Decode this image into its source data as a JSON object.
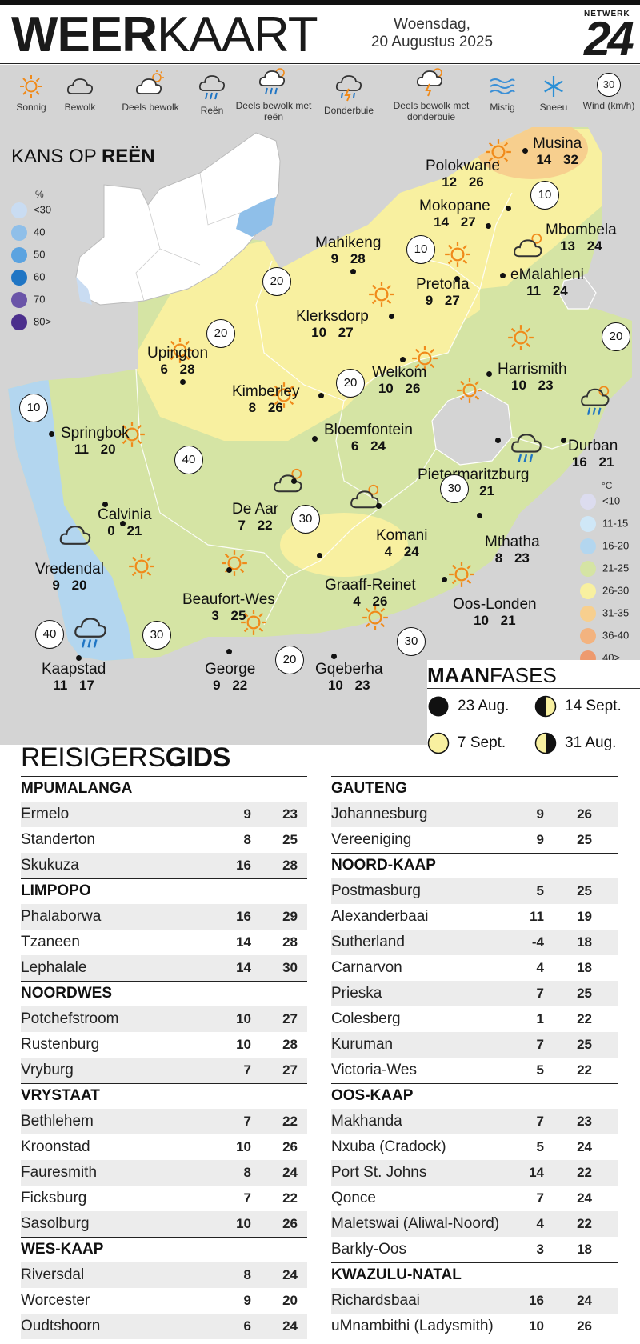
{
  "header": {
    "title_bold": "WEER",
    "title_light": "KAART",
    "date_line1": "Woensdag,",
    "date_line2": "20 Augustus 2025",
    "logo_top": "NETWERK",
    "logo_num": "24"
  },
  "legend": [
    {
      "icon": "sun-icon",
      "label": "Sonnig"
    },
    {
      "icon": "cloud-icon",
      "label": "Bewolk"
    },
    {
      "icon": "partly-cloudy-icon",
      "label": "Deels bewolk"
    },
    {
      "icon": "rain-icon",
      "label": "Reën"
    },
    {
      "icon": "partly-cloudy-rain-icon",
      "label": "Deels bewolk met reën"
    },
    {
      "icon": "thunderstorm-icon",
      "label": "Donderbuie"
    },
    {
      "icon": "partly-cloudy-thunder-icon",
      "label": "Deels bewolk met donderbuie"
    },
    {
      "icon": "fog-icon",
      "label": "Mistig"
    },
    {
      "icon": "snow-icon",
      "label": "Sneeu"
    },
    {
      "icon": "wind-icon",
      "label": "Wind (km/h)",
      "value": "30"
    }
  ],
  "rain_chance": {
    "title_light": "KANS OP ",
    "title_bold": "REËN",
    "unit": "%",
    "keys": [
      {
        "label": "<30",
        "color": "#c9dcf2"
      },
      {
        "label": "40",
        "color": "#8fbfe9"
      },
      {
        "label": "50",
        "color": "#5ba3e0"
      },
      {
        "label": "60",
        "color": "#1f75c4"
      },
      {
        "label": "70",
        "color": "#6a54a8"
      },
      {
        "label": "80>",
        "color": "#4b2e8c"
      }
    ]
  },
  "temperature_scale": {
    "unit": "°C",
    "keys": [
      {
        "label": "<10",
        "color": "#dcdcef"
      },
      {
        "label": "11-15",
        "color": "#cfe7f7"
      },
      {
        "label": "16-20",
        "color": "#b3d6ef"
      },
      {
        "label": "21-25",
        "color": "#d5e4a4"
      },
      {
        "label": "26-30",
        "color": "#f8f0a0"
      },
      {
        "label": "31-35",
        "color": "#f7cf8e"
      },
      {
        "label": "36-40",
        "color": "#f3b37f"
      },
      {
        "label": "40>",
        "color": "#ee9a6e"
      }
    ]
  },
  "cities": [
    {
      "name": "Musina",
      "min": "14",
      "max": "32"
    },
    {
      "name": "Polokwane",
      "min": "12",
      "max": "26"
    },
    {
      "name": "Mokopane",
      "min": "14",
      "max": "27"
    },
    {
      "name": "Mbombela",
      "min": "13",
      "max": "24"
    },
    {
      "name": "Mahikeng",
      "min": "9",
      "max": "28"
    },
    {
      "name": "Pretoria",
      "min": "9",
      "max": "27"
    },
    {
      "name": "eMalahleni",
      "min": "11",
      "max": "24"
    },
    {
      "name": "Klerksdorp",
      "min": "10",
      "max": "27"
    },
    {
      "name": "Upington",
      "min": "6",
      "max": "28"
    },
    {
      "name": "Welkom",
      "min": "10",
      "max": "26"
    },
    {
      "name": "Harrismith",
      "min": "10",
      "max": "23"
    },
    {
      "name": "Kimberley",
      "min": "8",
      "max": "26"
    },
    {
      "name": "Durban",
      "min": "16",
      "max": "21"
    },
    {
      "name": "Springbok",
      "min": "11",
      "max": "20"
    },
    {
      "name": "Bloemfontein",
      "min": "6",
      "max": "24"
    },
    {
      "name": "Pietermaritzburg",
      "min": "10",
      "max": "21"
    },
    {
      "name": "Calvinia",
      "min": "0",
      "max": "21"
    },
    {
      "name": "De Aar",
      "min": "7",
      "max": "22"
    },
    {
      "name": "Komani",
      "min": "4",
      "max": "24"
    },
    {
      "name": "Mthatha",
      "min": "8",
      "max": "23"
    },
    {
      "name": "Vredendal",
      "min": "9",
      "max": "20"
    },
    {
      "name": "Graaff-Reinet",
      "min": "4",
      "max": "26"
    },
    {
      "name": "Beaufort-Wes",
      "min": "3",
      "max": "25"
    },
    {
      "name": "Oos-Londen",
      "min": "10",
      "max": "21"
    },
    {
      "name": "Kaapstad",
      "min": "11",
      "max": "17"
    },
    {
      "name": "George",
      "min": "9",
      "max": "22"
    },
    {
      "name": "Gqeberha",
      "min": "10",
      "max": "23"
    }
  ],
  "wind": [
    "10",
    "10",
    "20",
    "20",
    "20",
    "20",
    "10",
    "40",
    "30",
    "30",
    "40",
    "30",
    "20",
    "30"
  ],
  "moon_phases": {
    "title_bold": "MAAN",
    "title_light": "FASES",
    "phases": [
      {
        "icon": "new-moon-icon",
        "date": "23 Aug."
      },
      {
        "icon": "first-quarter-moon-icon",
        "date": "14 Sept."
      },
      {
        "icon": "full-moon-icon",
        "date": "7 Sept."
      },
      {
        "icon": "last-quarter-moon-icon",
        "date": "31 Aug."
      }
    ]
  },
  "travel_guide": {
    "title_light": "REISIGERS",
    "title_bold": "GIDS",
    "left": [
      {
        "province": "MPUMALANGA",
        "rows": [
          [
            "Ermelo",
            "9",
            "23"
          ],
          [
            "Standerton",
            "8",
            "25"
          ],
          [
            "Skukuza",
            "16",
            "28"
          ]
        ]
      },
      {
        "province": "LIMPOPO",
        "rows": [
          [
            "Phalaborwa",
            "16",
            "29"
          ],
          [
            "Tzaneen",
            "14",
            "28"
          ],
          [
            "Lephalale",
            "14",
            "30"
          ]
        ]
      },
      {
        "province": "NOORDWES",
        "rows": [
          [
            "Potchefstroom",
            "10",
            "27"
          ],
          [
            "Rustenburg",
            "10",
            "28"
          ],
          [
            "Vryburg",
            "7",
            "27"
          ]
        ]
      },
      {
        "province": "VRYSTAAT",
        "rows": [
          [
            "Bethlehem",
            "7",
            "22"
          ],
          [
            "Kroonstad",
            "10",
            "26"
          ],
          [
            "Fauresmith",
            "8",
            "24"
          ],
          [
            "Ficksburg",
            "7",
            "22"
          ],
          [
            "Sasolburg",
            "10",
            "26"
          ]
        ]
      },
      {
        "province": "WES-KAAP",
        "rows": [
          [
            "Riversdal",
            "8",
            "24"
          ],
          [
            "Worcester",
            "9",
            "20"
          ],
          [
            "Oudtshoorn",
            "6",
            "24"
          ]
        ]
      }
    ],
    "right": [
      {
        "province": "GAUTENG",
        "rows": [
          [
            "Johannesburg",
            "9",
            "26"
          ],
          [
            "Vereeniging",
            "9",
            "25"
          ]
        ]
      },
      {
        "province": "NOORD-KAAP",
        "rows": [
          [
            "Postmasburg",
            "5",
            "25"
          ],
          [
            "Alexanderbaai",
            "11",
            "19"
          ],
          [
            "Sutherland",
            "-4",
            "18"
          ],
          [
            "Carnarvon",
            "4",
            "18"
          ],
          [
            "Prieska",
            "7",
            "25"
          ],
          [
            "Colesberg",
            "1",
            "22"
          ],
          [
            "Kuruman",
            "7",
            "25"
          ],
          [
            "Victoria-Wes",
            "5",
            "22"
          ]
        ]
      },
      {
        "province": "OOS-KAAP",
        "rows": [
          [
            "Makhanda",
            "7",
            "23"
          ],
          [
            "Nxuba (Cradock)",
            "5",
            "24"
          ],
          [
            "Port St. Johns",
            "14",
            "22"
          ],
          [
            "Qonce",
            "7",
            "24"
          ],
          [
            "Maletswai (Aliwal-Noord)",
            "4",
            "22"
          ],
          [
            "Barkly-Oos",
            "3",
            "18"
          ]
        ]
      },
      {
        "province": "KWAZULU-NATAL",
        "rows": [
          [
            "Richardsbaai",
            "16",
            "24"
          ],
          [
            "uMnambithi (Ladysmith)",
            "10",
            "26"
          ]
        ]
      }
    ]
  }
}
